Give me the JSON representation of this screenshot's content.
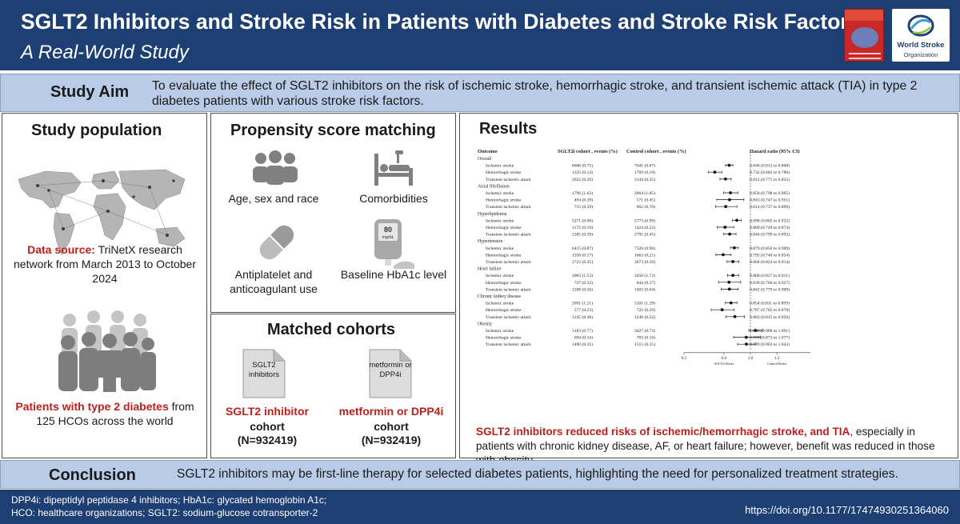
{
  "header": {
    "title": "SGLT2 Inhibitors and Stroke Risk in Patients with Diabetes and Stroke Risk Factors:",
    "subtitle": "A Real-World Study",
    "logo_name": "World Stroke",
    "logo_sub": "Organization",
    "colors": {
      "header_bg": "#1e3f73",
      "band_bg": "#b9cbe6",
      "highlight": "#c0201c"
    }
  },
  "aim": {
    "label": "Study Aim",
    "text": "To evaluate the effect of SGLT2 inhibitors on the risk of ischemic stroke, hemorrhagic stroke, and transient ischemic attack (TIA) in type 2 diabetes patients with various stroke risk factors."
  },
  "population": {
    "title": "Study population",
    "source_label": "Data source:",
    "source_text": " TriNetX research network from March 2013 to October 2024",
    "patients_bold": "Patients with type 2 diabetes",
    "patients_text": " from 125 HCOs across the world",
    "icons": [
      "world-map-icon",
      "people-group-icon"
    ]
  },
  "psm": {
    "title": "Propensity score matching",
    "items": [
      {
        "icon": "people-icon",
        "label": "Age, sex and race"
      },
      {
        "icon": "hospital-bed-icon",
        "label": "Comorbidities"
      },
      {
        "icon": "pill-capsule-icon",
        "label": "Antiplatelet and anticoagulant use"
      },
      {
        "icon": "glucometer-icon",
        "label": "Baseline HbA1c level",
        "device_value": "80",
        "device_unit": "mg/dL"
      }
    ]
  },
  "cohorts": {
    "title": "Matched cohorts",
    "a": {
      "doc_label": "SGLT2 inhibitors",
      "name": "SGLT2 inhibitor",
      "word": "cohort",
      "n": "(N=932419)"
    },
    "b": {
      "doc_label": "metformin or DPP4i",
      "name": "metformin or DPP4i",
      "word": "cohort",
      "n": "(N=932419)"
    }
  },
  "results": {
    "title": "Results",
    "summary_bold": "SGLT2 inhibitors reduced risks of ischemic/hemorrhagic stroke, and TIA",
    "summary_text": ", especially in patients with chronic kidney disease, AF, or heart failure; however, benefit was reduced in those with obesity."
  },
  "chart_data": {
    "type": "forest",
    "columns": {
      "outcome": "Outcome",
      "sglt2": "SGLT2i cohort , events (%)",
      "control": "Control cohort , events (%)",
      "hr": "Hazard ratio (95% CI)"
    },
    "x_ticks": [
      "0.5",
      "0.8",
      "1.0",
      "1.2",
      "1.5"
    ],
    "x_range": [
      0.5,
      1.5
    ],
    "reference_line": 1.0,
    "x_favor_left": "SGLT2i Better",
    "x_favor_right": "Control Better",
    "groups": [
      {
        "name": "Overall",
        "rows": [
          {
            "outcome": "Ischemic stroke",
            "sglt2": "6608 (0.75)",
            "control": "7641 (0.87)",
            "hr": 0.84,
            "lo": 0.813,
            "hi": 0.868,
            "hr_text": "0.840 (0.813 to 0.868)"
          },
          {
            "outcome": "Hemorrhagic stroke",
            "sglt2": "1335 (0.14)",
            "control": "1769 (0.19)",
            "hr": 0.732,
            "lo": 0.682,
            "hi": 0.786,
            "hr_text": "0.732 (0.682 to 0.786)"
          },
          {
            "outcome": "Transient ischemic attack",
            "sglt2": "2622 (0.29)",
            "control": "3144 (0.35)",
            "hr": 0.812,
            "lo": 0.771,
            "hi": 0.855,
            "hr_text": "0.812 (0.771 to 0.855)"
          }
        ]
      },
      {
        "name": "Atrial fibrillation",
        "rows": [
          {
            "outcome": "Ischemic stroke",
            "sglt2": "1796 (1.62)",
            "control": "2064 (1.85)",
            "hr": 0.85,
            "lo": 0.798,
            "hi": 0.905,
            "hr_text": "0.850 (0.798 to 0.905)"
          },
          {
            "outcome": "Hemorrhagic stroke",
            "sglt2": "494 (0.39)",
            "control": "571 (0.45)",
            "hr": 0.843,
            "lo": 0.747,
            "hi": 0.951,
            "hr_text": "0.843 (0.747 to 0.951)"
          },
          {
            "outcome": "Transient ischemic attack",
            "sglt2": "715 (0.59)",
            "control": "862 (0.70)",
            "hr": 0.814,
            "lo": 0.737,
            "hi": 0.899,
            "hr_text": "0.814 (0.737 to 0.899)"
          }
        ]
      },
      {
        "name": "Hyperlipidemia",
        "rows": [
          {
            "outcome": "Ischemic stroke",
            "sglt2": "5271 (0.90)",
            "control": "5773 (0.99)",
            "hr": 0.898,
            "lo": 0.865,
            "hi": 0.932,
            "hr_text": "0.898 (0.865 to 0.932)"
          },
          {
            "outcome": "Hemorrhagic stroke",
            "sglt2": "1172 (0.19)",
            "control": "1424 (0.23)",
            "hr": 0.809,
            "lo": 0.749,
            "hi": 0.874,
            "hr_text": "0.809 (0.749 to 0.874)"
          },
          {
            "outcome": "Transient ischemic attack",
            "sglt2": "2385 (0.39)",
            "control": "2791 (0.45)",
            "hr": 0.844,
            "lo": 0.799,
            "hi": 0.892,
            "hr_text": "0.844 (0.799 to 0.892)"
          }
        ]
      },
      {
        "name": "Hypertension",
        "rows": [
          {
            "outcome": "Ischemic stroke",
            "sglt2": "6415 (0.87)",
            "control": "7126 (0.96)",
            "hr": 0.879,
            "lo": 0.85,
            "hi": 0.909,
            "hr_text": "0.879 (0.850 to 0.909)"
          },
          {
            "outcome": "Hemorrhagic stroke",
            "sglt2": "1358 (0.17)",
            "control": "1663 (0.21)",
            "hr": 0.795,
            "lo": 0.74,
            "hi": 0.854,
            "hr_text": "0.795 (0.740 to 0.854)"
          },
          {
            "outcome": "Transient ischemic attack",
            "sglt2": "2723 (0.35)",
            "control": "3073 (0.39)",
            "hr": 0.868,
            "lo": 0.824,
            "hi": 0.914,
            "hr_text": "0.868 (0.824 to 0.914)"
          }
        ]
      },
      {
        "name": "Heart failure",
        "rows": [
          {
            "outcome": "Ischemic stroke",
            "sglt2": "3083 (1.53)",
            "control": "3456 (1.72)",
            "hr": 0.868,
            "lo": 0.827,
            "hi": 0.911,
            "hr_text": "0.868 (0.827 to 0.911)"
          },
          {
            "outcome": "Hemorrhagic stroke",
            "sglt2": "727 (0.32)",
            "control": "844 (0.37)",
            "hr": 0.839,
            "lo": 0.76,
            "hi": 0.927,
            "hr_text": "0.839 (0.760 to 0.927)"
          },
          {
            "outcome": "Transient ischemic attack",
            "sglt2": "1208 (0.56)",
            "control": "1403 (0.64)",
            "hr": 0.842,
            "lo": 0.779,
            "hi": 0.909,
            "hr_text": "0.842 (0.779 to 0.909)"
          }
        ]
      },
      {
        "name": "Chronic kidney disease",
        "rows": [
          {
            "outcome": "Ischemic stroke",
            "sglt2": "2691 (1.21)",
            "control": "3101 (1.39)",
            "hr": 0.854,
            "lo": 0.811,
            "hi": 0.899,
            "hr_text": "0.854 (0.811 to 0.899)"
          },
          {
            "outcome": "Hemorrhagic stroke",
            "sglt2": "577 (0.23)",
            "control": "722 (0.29)",
            "hr": 0.787,
            "lo": 0.705,
            "hi": 0.878,
            "hr_text": "0.787 (0.705 to 0.878)"
          },
          {
            "outcome": "Transient ischemic attack",
            "sglt2": "1145 (0.48)",
            "control": "1248 (0.52)",
            "hr": 0.883,
            "lo": 0.815,
            "hi": 0.956,
            "hr_text": "0.883 (0.815 to 0.956)"
          }
        ]
      },
      {
        "name": "Obesity",
        "rows": [
          {
            "outcome": "Ischemic stroke",
            "sglt2": "3183 (0.77)",
            "control": "3027 (0.73)",
            "hr": 1.038,
            "lo": 0.988,
            "hi": 1.091,
            "hr_text": "1.038 (0.988 to 1.091)"
          },
          {
            "outcome": "Hemorrhagic stroke",
            "sglt2": "694 (0.16)",
            "control": "703 (0.16)",
            "hr": 0.969,
            "lo": 0.873,
            "hi": 1.077,
            "hr_text": "0.969 (0.873 to 1.077)"
          },
          {
            "outcome": "Transient ischemic attack",
            "sglt2": "1490 (0.35)",
            "control": "1515 (0.35)",
            "hr": 0.97,
            "lo": 0.903,
            "hi": 1.042,
            "hr_text": "0.970 (0.903 to 1.042)"
          }
        ]
      }
    ]
  },
  "conclusion": {
    "label": "Conclusion",
    "text": "SGLT2 inhibitors may be first-line therapy for selected diabetes patients, highlighting the need for personalized treatment strategies."
  },
  "footer": {
    "abbr_line1": "DPP4i: dipeptidyl peptidase 4 inhibitors; HbA1c: glycated hemoglobin A1c;",
    "abbr_line2": "HCO: healthcare organizations; SGLT2: sodium-glucose cotransporter-2",
    "doi": "https://doi.org/10.1177/17474930251364060"
  }
}
